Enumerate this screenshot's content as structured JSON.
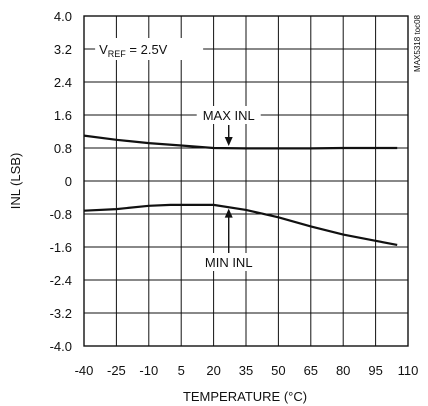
{
  "chart_data": {
    "type": "line",
    "xlabel": "TEMPERATURE (°C)",
    "ylabel": "INL (LSB)",
    "xlim": [
      -40,
      110
    ],
    "ylim": [
      -4.0,
      4.0
    ],
    "x_ticks": [
      "-40",
      "-25",
      "-10",
      "5",
      "20",
      "35",
      "50",
      "65",
      "80",
      "95",
      "110"
    ],
    "y_ticks": [
      "4.0",
      "3.2",
      "2.4",
      "1.6",
      "0.8",
      "0",
      "-0.8",
      "-1.6",
      "-2.4",
      "-3.2",
      "-4.0"
    ],
    "grid": true,
    "series": [
      {
        "name": "MAX INL",
        "x": [
          -40,
          -25,
          -10,
          5,
          20,
          35,
          50,
          65,
          80,
          95,
          105
        ],
        "y": [
          1.1,
          1.0,
          0.92,
          0.86,
          0.8,
          0.79,
          0.79,
          0.79,
          0.8,
          0.8,
          0.8
        ]
      },
      {
        "name": "MIN INL",
        "x": [
          -40,
          -25,
          -10,
          0,
          5,
          20,
          35,
          50,
          65,
          80,
          95,
          105
        ],
        "y": [
          -0.72,
          -0.68,
          -0.6,
          -0.58,
          -0.58,
          -0.58,
          -0.7,
          -0.88,
          -1.1,
          -1.3,
          -1.45,
          -1.55
        ]
      }
    ],
    "annotations": [
      {
        "text_main": "V",
        "text_sub": "REF",
        "text_rest": " = 2.5V",
        "x": -33,
        "y": 3.2
      },
      {
        "text": "MAX INL",
        "x": 27,
        "y": 1.6,
        "arrow_to": 0.8
      },
      {
        "text": "MIN INL",
        "x": 27,
        "y": -1.6,
        "arrow_to": -0.62
      }
    ],
    "code": "MAX5318 toc08"
  }
}
